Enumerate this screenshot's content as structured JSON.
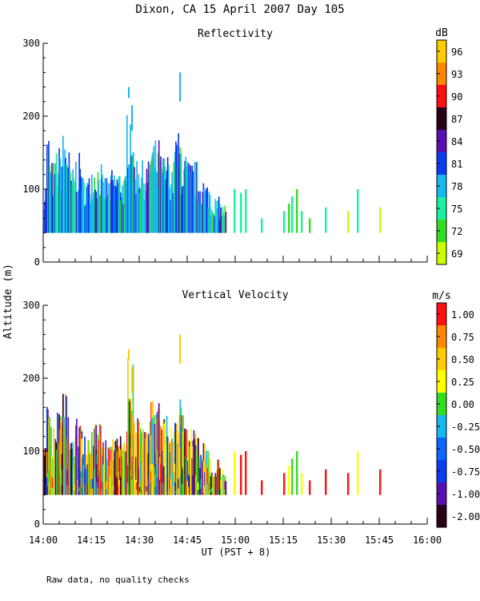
{
  "title": "Dixon, CA 15 April 2007  Day 105",
  "ylabel": "Altitude (m)",
  "xlabel": "UT  (PST + 8)",
  "footnote": "Raw data, no quality checks",
  "chart_data": [
    {
      "type": "heatmap",
      "title": "Reflectivity",
      "units": "dB",
      "xlim": [
        0,
        120
      ],
      "x_tick_values": [
        0,
        15,
        30,
        45,
        60,
        75,
        90,
        105,
        120
      ],
      "x_tick_labels": [
        "14:00",
        "14:15",
        "14:30",
        "14:45",
        "15:00",
        "15:15",
        "15:30",
        "15:45",
        "16:00"
      ],
      "ylim": [
        0,
        300
      ],
      "y_ticks": [
        0,
        100,
        200,
        300
      ],
      "colorbar": {
        "colors": [
          "#c8ff00",
          "#33dd22",
          "#19f0a0",
          "#16b8f0",
          "#0a3cf0",
          "#5a10b0",
          "#2a0018",
          "#ff1010",
          "#ff8800",
          "#ffcc00"
        ],
        "labels": [
          "69",
          "72",
          "75",
          "78",
          "81",
          "84",
          "87",
          "90",
          "93",
          "96"
        ]
      }
    },
    {
      "type": "heatmap",
      "title": "Vertical Velocity",
      "units": "m/s",
      "xlim": [
        0,
        120
      ],
      "x_tick_values": [
        0,
        15,
        30,
        45,
        60,
        75,
        90,
        105,
        120
      ],
      "x_tick_labels": [
        "14:00",
        "14:15",
        "14:30",
        "14:45",
        "15:00",
        "15:15",
        "15:30",
        "15:45",
        "16:00"
      ],
      "ylim": [
        0,
        300
      ],
      "y_ticks": [
        0,
        100,
        200,
        300
      ],
      "colorbar": {
        "colors": [
          "#2a0018",
          "#5a10b0",
          "#0a3cf0",
          "#0a66ff",
          "#16b8f0",
          "#33dd22",
          "#ffff00",
          "#ffcc00",
          "#ff8800",
          "#ff1010"
        ],
        "labels": [
          "-2.00",
          "-1.00",
          "-0.75",
          "-0.50",
          "-0.25",
          "0.00",
          "0.25",
          "0.50",
          "0.75",
          "1.00"
        ]
      }
    }
  ]
}
